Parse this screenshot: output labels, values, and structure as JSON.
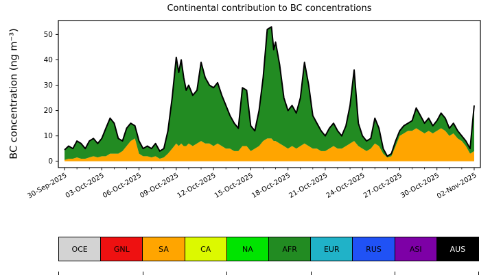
{
  "chart_data": {
    "type": "area",
    "stacked": true,
    "title": "Continental contribution to BC concentrations",
    "xlabel": "",
    "ylabel": "BC concentration (ng m⁻³)",
    "x_unit": "days since 30-Sep-2025",
    "grid": false,
    "legend_position": "bottom",
    "xlim": [
      -0.5,
      33.5
    ],
    "ylim": [
      -2.5,
      55.5
    ],
    "y_ticks": [
      0,
      10,
      20,
      30,
      40,
      50
    ],
    "x_tick_pos": [
      0,
      3,
      6,
      9,
      12,
      15,
      18,
      21,
      24,
      27,
      30,
      33
    ],
    "x_tick_labels": [
      "30-Sep-2025",
      "03-Oct-2025",
      "06-Oct-2025",
      "09-Oct-2025",
      "12-Oct-2025",
      "15-Oct-2025",
      "18-Oct-2025",
      "21-Oct-2025",
      "24-Oct-2025",
      "27-Oct-2025",
      "30-Oct-2025",
      "02-Nov-2025"
    ],
    "x": [
      0,
      0.33,
      0.67,
      1,
      1.33,
      1.67,
      2,
      2.33,
      2.67,
      3,
      3.33,
      3.67,
      4,
      4.33,
      4.67,
      5,
      5.33,
      5.67,
      6,
      6.33,
      6.67,
      7,
      7.33,
      7.67,
      8,
      8.33,
      8.67,
      9,
      9.2,
      9.4,
      9.6,
      9.8,
      10,
      10.33,
      10.67,
      11,
      11.33,
      11.67,
      12,
      12.33,
      12.67,
      13,
      13.33,
      13.67,
      14,
      14.33,
      14.67,
      15,
      15.33,
      15.67,
      16,
      16.33,
      16.67,
      16.85,
      17,
      17.33,
      17.67,
      18,
      18.33,
      18.67,
      19,
      19.33,
      19.67,
      20,
      20.33,
      20.67,
      21,
      21.33,
      21.67,
      22,
      22.33,
      22.67,
      23,
      23.33,
      23.67,
      24,
      24.33,
      24.67,
      25,
      25.33,
      25.67,
      26,
      26.33,
      26.67,
      27,
      27.33,
      27.67,
      28,
      28.33,
      28.67,
      29,
      29.33,
      29.67,
      30,
      30.33,
      30.67,
      31,
      31.33,
      31.67,
      32,
      32.33,
      32.67,
      33
    ],
    "series": [
      {
        "name": "SA",
        "color": "#ffa500",
        "values": [
          0.5,
          1,
          1,
          1.5,
          1,
          1,
          1.5,
          2,
          1.5,
          2,
          2,
          3,
          3,
          3,
          4,
          6,
          8,
          9,
          3,
          2,
          2,
          1.5,
          2,
          1,
          1.5,
          3,
          5,
          7,
          6,
          7,
          6,
          6,
          7,
          6,
          7,
          8,
          7,
          7,
          6,
          7,
          6,
          5,
          5,
          4,
          4,
          6,
          6,
          4,
          5,
          6,
          8,
          9,
          9,
          8,
          8,
          7,
          6,
          5,
          6,
          5,
          6,
          7,
          6,
          5,
          5,
          4,
          4,
          5,
          6,
          5,
          5,
          6,
          7,
          8,
          6,
          5,
          4,
          5,
          7,
          6,
          3,
          1.5,
          2,
          6,
          10,
          11,
          12,
          12,
          13,
          12,
          11,
          12,
          11,
          12,
          13,
          12,
          10,
          11,
          9,
          8,
          6,
          3,
          4
        ]
      },
      {
        "name": "AFR",
        "color": "#228b22",
        "values": [
          4,
          5,
          4,
          6.5,
          6,
          4,
          6.5,
          7,
          5.5,
          7,
          11,
          14,
          12,
          6,
          4,
          7,
          7,
          5,
          5,
          3,
          4,
          3.5,
          5,
          3,
          3.5,
          9,
          20,
          34,
          29,
          33,
          27,
          22,
          23,
          20,
          21,
          31,
          26,
          23,
          23,
          24,
          20,
          17,
          13,
          11,
          9,
          23,
          22,
          10,
          7,
          14,
          25,
          43,
          44,
          36,
          39,
          31,
          19,
          15,
          16,
          14,
          19,
          32,
          24,
          13,
          10,
          8,
          6,
          8,
          9,
          7,
          5,
          8,
          15,
          28,
          9,
          5,
          4,
          4,
          10,
          7,
          2,
          0.5,
          1,
          2,
          2,
          3,
          3,
          4,
          8,
          6,
          4,
          5,
          3,
          4,
          6,
          5,
          3,
          4,
          3,
          2,
          2,
          2,
          18
        ]
      }
    ],
    "total_outline_color": "#000000"
  },
  "legend": {
    "items": [
      {
        "label": "OCE",
        "color": "#d3d3d3",
        "text": "#000000"
      },
      {
        "label": "GNL",
        "color": "#ee1111",
        "text": "#000000"
      },
      {
        "label": "SA",
        "color": "#ffa500",
        "text": "#000000"
      },
      {
        "label": "CA",
        "color": "#dcf900",
        "text": "#000000"
      },
      {
        "label": "NA",
        "color": "#00e400",
        "text": "#000000"
      },
      {
        "label": "AFR",
        "color": "#228b22",
        "text": "#000000"
      },
      {
        "label": "EUR",
        "color": "#20b2c8",
        "text": "#000000"
      },
      {
        "label": "RUS",
        "color": "#2052f5",
        "text": "#000000"
      },
      {
        "label": "ASI",
        "color": "#7d00a6",
        "text": "#000000"
      },
      {
        "label": "AUS",
        "color": "#000000",
        "text": "#ffffff"
      }
    ]
  }
}
